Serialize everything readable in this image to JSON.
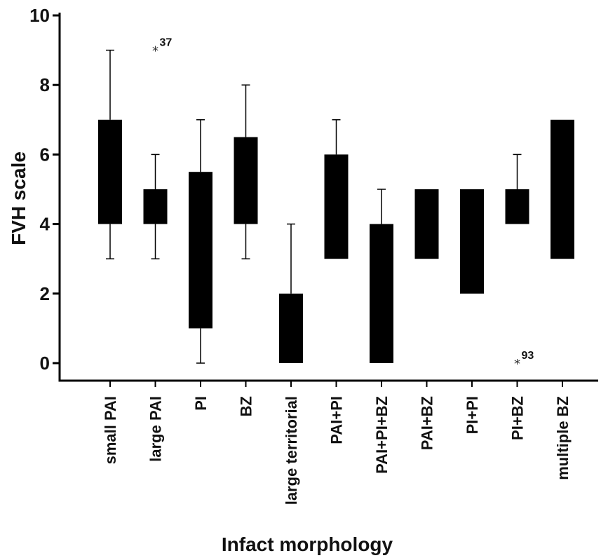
{
  "chart_data": {
    "type": "box",
    "xlabel": "Infact morphology",
    "ylabel": "FVH scale",
    "ylim": [
      0,
      10
    ],
    "yticks": [
      "0",
      "2",
      "4",
      "6",
      "8",
      "10"
    ],
    "grid": false,
    "box_color": "#000000",
    "categories": [
      "small PAI",
      "large PAI",
      "PI",
      "BZ",
      "large territorial",
      "PAI+PI",
      "PAI+PI+BZ",
      "PAI+BZ",
      "PI+PI",
      "PI+BZ",
      "multiple BZ"
    ],
    "boxes": [
      {
        "category": "small PAI",
        "whisker_low": 3,
        "q1": 4,
        "q3": 7,
        "whisker_high": 9
      },
      {
        "category": "large PAI",
        "whisker_low": 3,
        "q1": 4,
        "q3": 5,
        "whisker_high": 6
      },
      {
        "category": "PI",
        "whisker_low": 0,
        "q1": 1,
        "q3": 5.5,
        "whisker_high": 7
      },
      {
        "category": "BZ",
        "whisker_low": 3,
        "q1": 4,
        "q3": 6.5,
        "whisker_high": 8
      },
      {
        "category": "large territorial",
        "whisker_low": 0,
        "q1": 0,
        "q3": 2,
        "whisker_high": 4
      },
      {
        "category": "PAI+PI",
        "whisker_low": 3,
        "q1": 3,
        "q3": 6,
        "whisker_high": 7
      },
      {
        "category": "PAI+PI+BZ",
        "whisker_low": 0,
        "q1": 0,
        "q3": 4,
        "whisker_high": 5
      },
      {
        "category": "PAI+BZ",
        "whisker_low": 3,
        "q1": 3,
        "q3": 5,
        "whisker_high": 5
      },
      {
        "category": "PI+PI",
        "whisker_low": 2,
        "q1": 2,
        "q3": 5,
        "whisker_high": 5
      },
      {
        "category": "PI+BZ",
        "whisker_low": 4,
        "q1": 4,
        "q3": 5,
        "whisker_high": 6
      },
      {
        "category": "multiple BZ",
        "whisker_low": 3,
        "q1": 3,
        "q3": 7,
        "whisker_high": 7
      }
    ],
    "outliers": [
      {
        "category": "large PAI",
        "value": 9,
        "label": "37"
      },
      {
        "category": "PI+BZ",
        "value": 0,
        "label": "93"
      }
    ]
  }
}
